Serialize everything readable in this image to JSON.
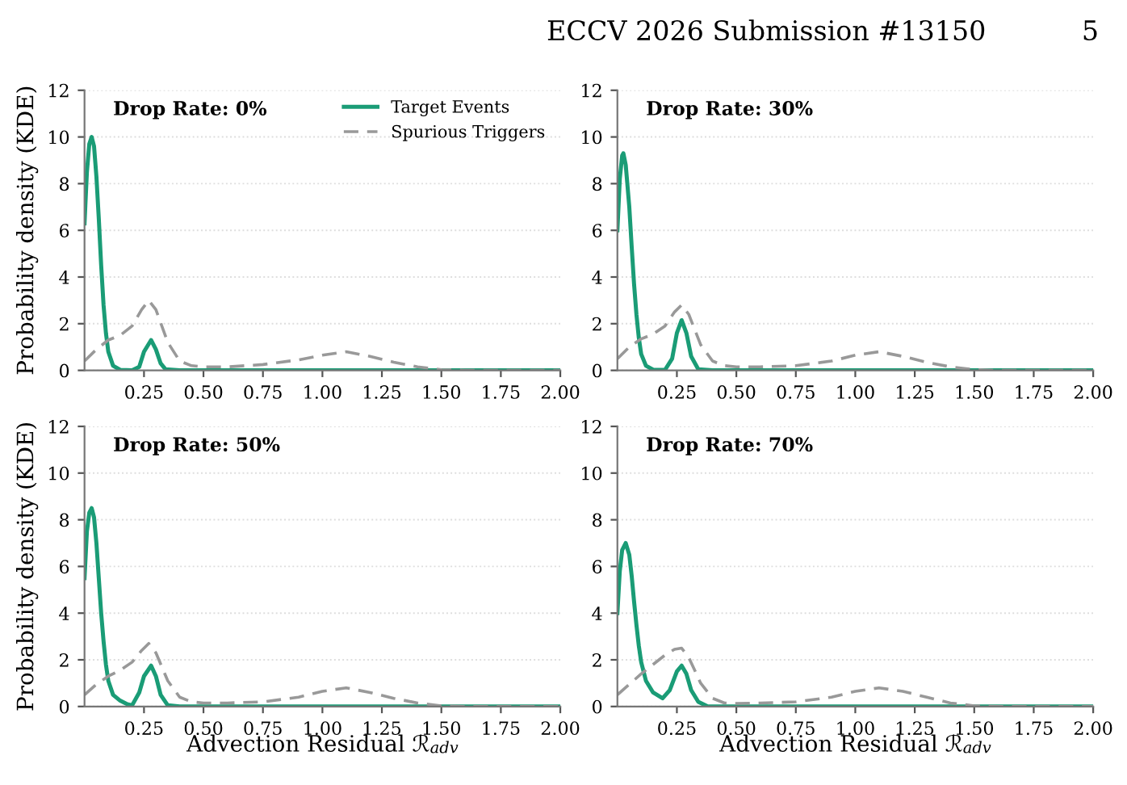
{
  "chart_data": [
    {
      "type": "line",
      "ylabel": "Probability density (KDE)",
      "xlim": [
        0,
        2
      ],
      "ylim": [
        0,
        12
      ],
      "xticks": [
        0.25,
        {
          "value": 0.5,
          "label": "0.50"
        },
        0.75,
        {
          "value": 1,
          "label": "1.00"
        },
        1.25,
        {
          "value": 1.5,
          "label": "1.50"
        },
        1.75,
        {
          "value": 2,
          "label": "2.00"
        }
      ],
      "yticks": [
        0,
        2,
        4,
        6,
        8,
        10,
        12
      ],
      "grid": "y",
      "legend": "top right",
      "annotations": [
        "Drop Rate: 0%",
        "ECCV 2026 Submission #13150",
        "5"
      ],
      "series": [
        {
          "name": "Target Events",
          "color": "#1a9c76",
          "line_style": "solid",
          "x": [
            0,
            0.01,
            0.02,
            0.03,
            0.04,
            0.05,
            0.06,
            0.07,
            0.08,
            0.09,
            0.1,
            0.12,
            0.15,
            0.2,
            0.23,
            0.25,
            0.28,
            0.3,
            0.32,
            0.34,
            0.4,
            2.0
          ],
          "values": [
            6.3,
            8.5,
            9.7,
            10.0,
            9.6,
            8.3,
            6.5,
            4.5,
            2.8,
            1.6,
            0.8,
            0.2,
            0.02,
            0,
            0.15,
            0.8,
            1.3,
            0.9,
            0.3,
            0.05,
            0,
            0
          ]
        },
        {
          "name": "Spurious Triggers",
          "color": "#999999",
          "line_style": "dashed",
          "x": [
            0,
            0.05,
            0.1,
            0.15,
            0.2,
            0.24,
            0.27,
            0.3,
            0.35,
            0.4,
            0.45,
            0.5,
            0.6,
            0.75,
            0.9,
            1.0,
            1.1,
            1.2,
            1.3,
            1.4,
            1.5,
            1.6,
            2.0
          ],
          "values": [
            0.4,
            0.9,
            1.3,
            1.5,
            1.9,
            2.6,
            3.0,
            2.6,
            1.2,
            0.4,
            0.2,
            0.15,
            0.15,
            0.25,
            0.45,
            0.65,
            0.8,
            0.6,
            0.35,
            0.15,
            0.03,
            0,
            0
          ]
        }
      ]
    },
    {
      "type": "line",
      "xlim": [
        0,
        2
      ],
      "ylim": [
        0,
        12
      ],
      "xticks": [
        0.25,
        {
          "value": 0.5,
          "label": "0.50"
        },
        0.75,
        {
          "value": 1,
          "label": "1.00"
        },
        1.25,
        {
          "value": 1.5,
          "label": "1.50"
        },
        1.75,
        {
          "value": 2,
          "label": "2.00"
        }
      ],
      "yticks": [
        0,
        2,
        4,
        6,
        8,
        10,
        12
      ],
      "grid": "y",
      "annotations": [
        "Drop Rate: 30%"
      ],
      "series": [
        {
          "color": "#1a9c76",
          "line_style": "solid",
          "x": [
            0,
            0.01,
            0.02,
            0.025,
            0.035,
            0.05,
            0.06,
            0.07,
            0.08,
            0.09,
            0.1,
            0.12,
            0.15,
            0.2,
            0.23,
            0.25,
            0.27,
            0.29,
            0.31,
            0.34,
            0.4,
            2.0
          ],
          "values": [
            6.0,
            8.2,
            9.2,
            9.3,
            8.8,
            7.0,
            5.3,
            3.7,
            2.4,
            1.4,
            0.7,
            0.2,
            0.03,
            0.02,
            0.5,
            1.6,
            2.15,
            1.6,
            0.6,
            0.05,
            0,
            0
          ]
        },
        {
          "color": "#999999",
          "line_style": "dashed",
          "x": [
            0,
            0.05,
            0.1,
            0.15,
            0.2,
            0.24,
            0.27,
            0.3,
            0.35,
            0.4,
            0.45,
            0.5,
            0.6,
            0.75,
            0.9,
            1.0,
            1.1,
            1.2,
            1.3,
            1.4,
            1.5,
            1.6,
            2.0
          ],
          "values": [
            0.5,
            1.0,
            1.35,
            1.55,
            1.9,
            2.5,
            2.8,
            2.4,
            1.1,
            0.4,
            0.2,
            0.15,
            0.15,
            0.2,
            0.4,
            0.65,
            0.8,
            0.6,
            0.35,
            0.15,
            0.03,
            0,
            0
          ]
        }
      ]
    },
    {
      "type": "line",
      "ylabel": "Probability density (KDE)",
      "xlabel": "Advection Residual ℛ$_{adv}$",
      "xlim": [
        0,
        2
      ],
      "ylim": [
        0,
        12
      ],
      "xticks": [
        0.25,
        {
          "value": 0.5,
          "label": "0.50"
        },
        0.75,
        {
          "value": 1,
          "label": "1.00"
        },
        1.25,
        {
          "value": 1.5,
          "label": "1.50"
        },
        1.75,
        {
          "value": 2,
          "label": "2.00"
        }
      ],
      "yticks": [
        0,
        2,
        4,
        6,
        8,
        10,
        12
      ],
      "grid": "y",
      "annotations": [
        "Drop Rate: 50%"
      ],
      "series": [
        {
          "color": "#1a9c76",
          "line_style": "solid",
          "x": [
            0,
            0.01,
            0.02,
            0.03,
            0.04,
            0.05,
            0.06,
            0.07,
            0.08,
            0.09,
            0.1,
            0.12,
            0.15,
            0.18,
            0.2,
            0.23,
            0.25,
            0.28,
            0.3,
            0.32,
            0.35,
            0.4,
            2.0
          ],
          "values": [
            5.5,
            7.5,
            8.3,
            8.5,
            8.1,
            7.0,
            5.5,
            4.0,
            2.8,
            1.8,
            1.1,
            0.5,
            0.25,
            0.1,
            0.05,
            0.6,
            1.3,
            1.75,
            1.3,
            0.5,
            0.05,
            0,
            0
          ]
        },
        {
          "color": "#999999",
          "line_style": "dashed",
          "x": [
            0,
            0.05,
            0.1,
            0.15,
            0.2,
            0.24,
            0.27,
            0.3,
            0.35,
            0.4,
            0.45,
            0.5,
            0.6,
            0.75,
            0.9,
            1.0,
            1.1,
            1.2,
            1.3,
            1.4,
            1.5,
            1.6,
            2.0
          ],
          "values": [
            0.5,
            0.95,
            1.3,
            1.55,
            1.9,
            2.4,
            2.7,
            2.3,
            1.1,
            0.4,
            0.2,
            0.15,
            0.15,
            0.2,
            0.4,
            0.65,
            0.8,
            0.6,
            0.35,
            0.15,
            0.03,
            0,
            0
          ]
        }
      ]
    },
    {
      "type": "line",
      "xlabel": "Advection Residual ℛ$_{adv}$",
      "xlim": [
        0,
        2
      ],
      "ylim": [
        0,
        12
      ],
      "xticks": [
        0.25,
        {
          "value": 0.5,
          "label": "0.50"
        },
        0.75,
        {
          "value": 1,
          "label": "1.00"
        },
        1.25,
        {
          "value": 1.5,
          "label": "1.50"
        },
        1.75,
        {
          "value": 2,
          "label": "2.00"
        }
      ],
      "yticks": [
        0,
        2,
        4,
        6,
        8,
        10,
        12
      ],
      "grid": "y",
      "annotations": [
        "Drop Rate: 70%"
      ],
      "series": [
        {
          "color": "#1a9c76",
          "line_style": "solid",
          "x": [
            0,
            0.01,
            0.02,
            0.035,
            0.05,
            0.06,
            0.07,
            0.08,
            0.09,
            0.1,
            0.12,
            0.15,
            0.19,
            0.22,
            0.25,
            0.27,
            0.29,
            0.31,
            0.34,
            0.38,
            2.0
          ],
          "values": [
            4.0,
            5.8,
            6.7,
            7.0,
            6.5,
            5.6,
            4.5,
            3.5,
            2.6,
            1.9,
            1.1,
            0.6,
            0.35,
            0.7,
            1.5,
            1.75,
            1.4,
            0.7,
            0.2,
            0,
            0
          ]
        },
        {
          "color": "#999999",
          "line_style": "dashed",
          "x": [
            0,
            0.05,
            0.1,
            0.15,
            0.2,
            0.24,
            0.27,
            0.3,
            0.35,
            0.4,
            0.45,
            0.5,
            0.6,
            0.75,
            0.9,
            1.0,
            1.1,
            1.2,
            1.3,
            1.4,
            1.5,
            1.6,
            2.0
          ],
          "values": [
            0.5,
            0.95,
            1.4,
            1.8,
            2.2,
            2.45,
            2.5,
            2.1,
            1.0,
            0.35,
            0.15,
            0.13,
            0.15,
            0.2,
            0.4,
            0.65,
            0.8,
            0.65,
            0.4,
            0.15,
            0.03,
            0,
            0
          ]
        }
      ]
    }
  ]
}
